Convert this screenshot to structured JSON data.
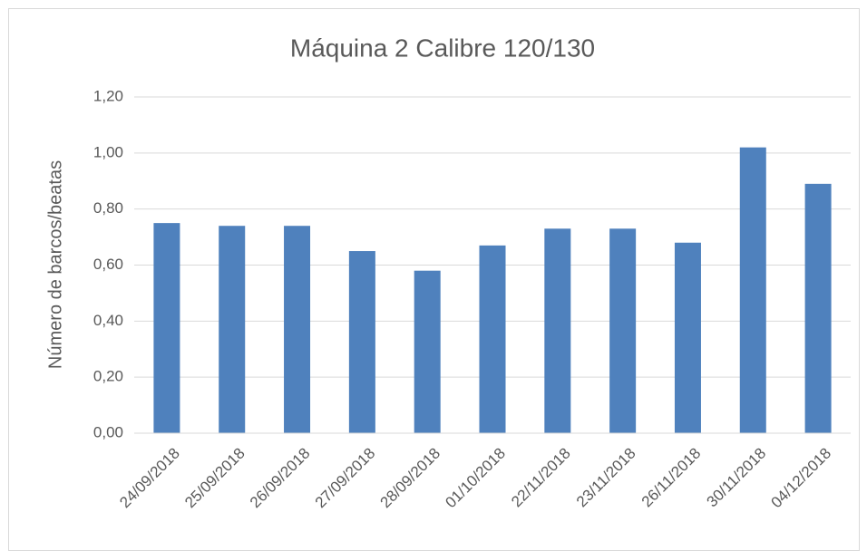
{
  "chart_data": {
    "type": "bar",
    "title": "Máquina 2 Calibre 120/130",
    "y_label": "Número de barcos/beatas",
    "categories": [
      "24/09/2018",
      "25/09/2018",
      "26/09/2018",
      "27/09/2018",
      "28/09/2018",
      "01/10/2018",
      "22/11/2018",
      "23/11/2018",
      "26/11/2018",
      "30/11/2018",
      "04/12/2018"
    ],
    "values": [
      0.75,
      0.74,
      0.74,
      0.65,
      0.58,
      0.67,
      0.73,
      0.73,
      0.68,
      1.02,
      0.89
    ],
    "color": "#4f81bd",
    "ylim": [
      0,
      1.2
    ],
    "yticks": [
      {
        "value": 0,
        "label": "0,00"
      },
      {
        "value": 0.2,
        "label": "0,20"
      },
      {
        "value": 0.4,
        "label": "0,40"
      },
      {
        "value": 0.6,
        "label": "0,60"
      },
      {
        "value": 0.8,
        "label": "0,80"
      },
      {
        "value": 1.0,
        "label": "1,00"
      },
      {
        "value": 1.2,
        "label": "1,20"
      }
    ],
    "grid": true
  }
}
